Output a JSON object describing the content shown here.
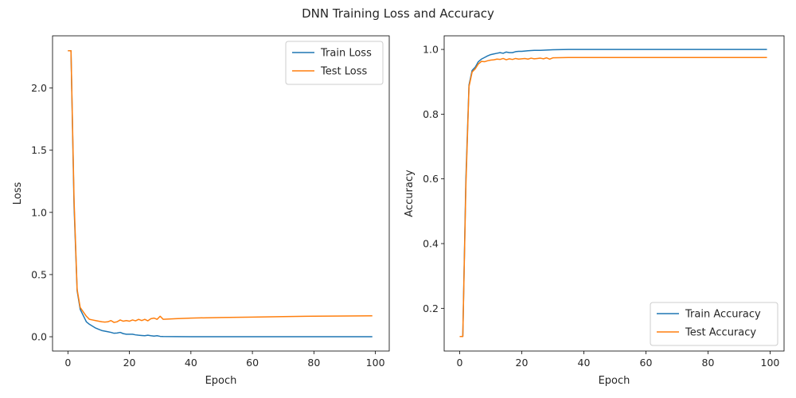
{
  "suptitle": "DNN Training Loss and Accuracy",
  "colors": {
    "train": "#1f77b4",
    "test": "#ff7f0e"
  },
  "chart_data": [
    {
      "type": "line",
      "xlabel": "Epoch",
      "ylabel": "Loss",
      "xlim": [
        -5,
        104.5
      ],
      "ylim": [
        -0.115,
        2.42
      ],
      "xticks": [
        0,
        20,
        40,
        60,
        80,
        100
      ],
      "yticks": [
        0.0,
        0.5,
        1.0,
        1.5,
        2.0,
        2.5
      ],
      "ytick_decimals": 1,
      "grid": false,
      "legend_position": "top-right",
      "series": [
        {
          "name": "Train Loss",
          "color_key": "train",
          "points": [
            [
              0,
              2.3
            ],
            [
              1,
              2.3
            ],
            [
              2,
              1.05
            ],
            [
              3,
              0.37
            ],
            [
              4,
              0.22
            ],
            [
              5,
              0.17
            ],
            [
              6,
              0.12
            ],
            [
              7,
              0.1
            ],
            [
              8,
              0.085
            ],
            [
              9,
              0.07
            ],
            [
              10,
              0.06
            ],
            [
              11,
              0.05
            ],
            [
              12,
              0.045
            ],
            [
              13,
              0.04
            ],
            [
              14,
              0.035
            ],
            [
              15,
              0.028
            ],
            [
              16,
              0.03
            ],
            [
              17,
              0.035
            ],
            [
              18,
              0.025
            ],
            [
              19,
              0.02
            ],
            [
              20,
              0.02
            ],
            [
              21,
              0.02
            ],
            [
              22,
              0.015
            ],
            [
              23,
              0.012
            ],
            [
              24,
              0.01
            ],
            [
              25,
              0.008
            ],
            [
              26,
              0.012
            ],
            [
              27,
              0.008
            ],
            [
              28,
              0.005
            ],
            [
              29,
              0.008
            ],
            [
              30,
              0.003
            ],
            [
              31,
              0.002
            ],
            [
              35,
              0.001
            ],
            [
              40,
              0.0005
            ],
            [
              50,
              0.0003
            ],
            [
              60,
              0.0002
            ],
            [
              70,
              0.0001
            ],
            [
              80,
              0.0001
            ],
            [
              90,
              0.0001
            ],
            [
              99,
              0.0001
            ]
          ]
        },
        {
          "name": "Test Loss",
          "color_key": "test",
          "points": [
            [
              0,
              2.3
            ],
            [
              1,
              2.3
            ],
            [
              2,
              1.1
            ],
            [
              3,
              0.38
            ],
            [
              4,
              0.235
            ],
            [
              5,
              0.2
            ],
            [
              6,
              0.165
            ],
            [
              7,
              0.14
            ],
            [
              8,
              0.135
            ],
            [
              9,
              0.13
            ],
            [
              10,
              0.125
            ],
            [
              11,
              0.12
            ],
            [
              12,
              0.118
            ],
            [
              13,
              0.12
            ],
            [
              14,
              0.13
            ],
            [
              15,
              0.115
            ],
            [
              16,
              0.12
            ],
            [
              17,
              0.135
            ],
            [
              18,
              0.125
            ],
            [
              19,
              0.13
            ],
            [
              20,
              0.125
            ],
            [
              21,
              0.135
            ],
            [
              22,
              0.128
            ],
            [
              23,
              0.14
            ],
            [
              24,
              0.13
            ],
            [
              25,
              0.14
            ],
            [
              26,
              0.128
            ],
            [
              27,
              0.145
            ],
            [
              28,
              0.15
            ],
            [
              29,
              0.14
            ],
            [
              30,
              0.165
            ],
            [
              31,
              0.14
            ],
            [
              35,
              0.145
            ],
            [
              40,
              0.15
            ],
            [
              50,
              0.155
            ],
            [
              60,
              0.158
            ],
            [
              70,
              0.162
            ],
            [
              80,
              0.165
            ],
            [
              90,
              0.167
            ],
            [
              99,
              0.168
            ]
          ]
        }
      ]
    },
    {
      "type": "line",
      "xlabel": "Epoch",
      "ylabel": "Accuracy",
      "xlim": [
        -5,
        104.5
      ],
      "ylim": [
        0.068,
        1.042
      ],
      "xticks": [
        0,
        20,
        40,
        60,
        80,
        100
      ],
      "yticks": [
        0.2,
        0.4,
        0.6,
        0.8,
        1.0
      ],
      "ytick_decimals": 1,
      "grid": false,
      "legend_position": "bottom-right",
      "series": [
        {
          "name": "Train Accuracy",
          "color_key": "train",
          "points": [
            [
              0,
              0.113
            ],
            [
              1,
              0.113
            ],
            [
              2,
              0.6
            ],
            [
              3,
              0.89
            ],
            [
              4,
              0.935
            ],
            [
              5,
              0.945
            ],
            [
              6,
              0.962
            ],
            [
              7,
              0.97
            ],
            [
              8,
              0.975
            ],
            [
              9,
              0.98
            ],
            [
              10,
              0.984
            ],
            [
              11,
              0.986
            ],
            [
              12,
              0.988
            ],
            [
              13,
              0.99
            ],
            [
              14,
              0.988
            ],
            [
              15,
              0.992
            ],
            [
              16,
              0.99
            ],
            [
              17,
              0.99
            ],
            [
              18,
              0.993
            ],
            [
              19,
              0.994
            ],
            [
              20,
              0.994
            ],
            [
              22,
              0.996
            ],
            [
              24,
              0.997
            ],
            [
              26,
              0.997
            ],
            [
              28,
              0.998
            ],
            [
              30,
              0.999
            ],
            [
              35,
              1.0
            ],
            [
              40,
              1.0
            ],
            [
              50,
              1.0
            ],
            [
              60,
              1.0
            ],
            [
              70,
              1.0
            ],
            [
              80,
              1.0
            ],
            [
              90,
              1.0
            ],
            [
              99,
              1.0
            ]
          ]
        },
        {
          "name": "Test Accuracy",
          "color_key": "test",
          "points": [
            [
              0,
              0.113
            ],
            [
              1,
              0.113
            ],
            [
              2,
              0.58
            ],
            [
              3,
              0.885
            ],
            [
              4,
              0.93
            ],
            [
              5,
              0.94
            ],
            [
              6,
              0.955
            ],
            [
              7,
              0.963
            ],
            [
              8,
              0.962
            ],
            [
              9,
              0.965
            ],
            [
              10,
              0.967
            ],
            [
              11,
              0.968
            ],
            [
              12,
              0.97
            ],
            [
              13,
              0.969
            ],
            [
              14,
              0.972
            ],
            [
              15,
              0.968
            ],
            [
              16,
              0.971
            ],
            [
              17,
              0.969
            ],
            [
              18,
              0.972
            ],
            [
              19,
              0.97
            ],
            [
              20,
              0.971
            ],
            [
              21,
              0.972
            ],
            [
              22,
              0.97
            ],
            [
              23,
              0.973
            ],
            [
              24,
              0.971
            ],
            [
              25,
              0.972
            ],
            [
              26,
              0.973
            ],
            [
              27,
              0.971
            ],
            [
              28,
              0.974
            ],
            [
              29,
              0.97
            ],
            [
              30,
              0.974
            ],
            [
              35,
              0.975
            ],
            [
              40,
              0.975
            ],
            [
              50,
              0.975
            ],
            [
              60,
              0.975
            ],
            [
              70,
              0.975
            ],
            [
              80,
              0.975
            ],
            [
              90,
              0.975
            ],
            [
              99,
              0.975
            ]
          ]
        }
      ]
    }
  ]
}
